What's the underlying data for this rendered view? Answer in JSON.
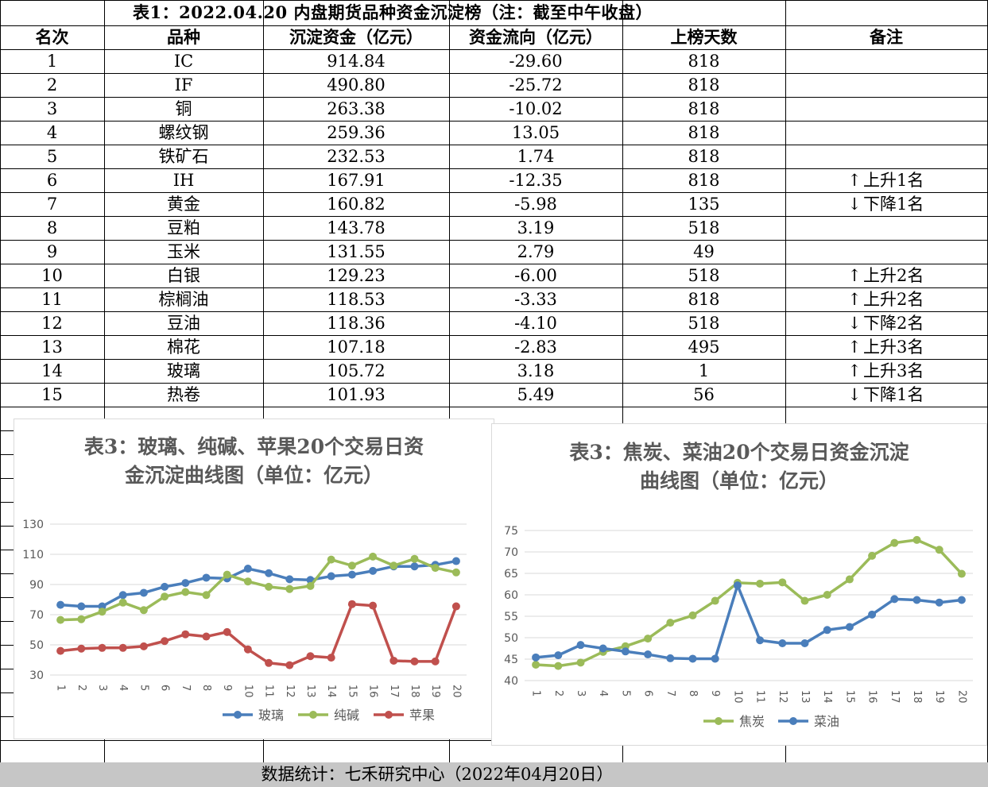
{
  "table": {
    "title": "表1：2022.04.20 内盘期货品种资金沉淀榜（注：截至中午收盘）",
    "headers": [
      "名次",
      "品种",
      "沉淀资金（亿元）",
      "资金流向（亿元）",
      "上榜天数",
      "备注"
    ],
    "rows": [
      {
        "rank": "1",
        "name": "IC",
        "fund": "914.84",
        "flow": "-29.60",
        "days": "818",
        "arrow": "",
        "note": ""
      },
      {
        "rank": "2",
        "name": "IF",
        "fund": "490.80",
        "flow": "-25.72",
        "days": "818",
        "arrow": "",
        "note": ""
      },
      {
        "rank": "3",
        "name": "铜",
        "fund": "263.38",
        "flow": "-10.02",
        "days": "818",
        "arrow": "",
        "note": ""
      },
      {
        "rank": "4",
        "name": "螺纹钢",
        "fund": "259.36",
        "flow": "13.05",
        "days": "818",
        "arrow": "",
        "note": ""
      },
      {
        "rank": "5",
        "name": "铁矿石",
        "fund": "232.53",
        "flow": "1.74",
        "days": "818",
        "arrow": "",
        "note": ""
      },
      {
        "rank": "6",
        "name": "IH",
        "fund": "167.91",
        "flow": "-12.35",
        "days": "818",
        "arrow": "↑",
        "note": "上升1名"
      },
      {
        "rank": "7",
        "name": "黄金",
        "fund": "160.82",
        "flow": "-5.98",
        "days": "135",
        "arrow": "↓",
        "note": "下降1名"
      },
      {
        "rank": "8",
        "name": "豆粕",
        "fund": "143.78",
        "flow": "3.19",
        "days": "518",
        "arrow": "",
        "note": ""
      },
      {
        "rank": "9",
        "name": "玉米",
        "fund": "131.55",
        "flow": "2.79",
        "days": "49",
        "arrow": "",
        "note": ""
      },
      {
        "rank": "10",
        "name": "白银",
        "fund": "129.23",
        "flow": "-6.00",
        "days": "518",
        "arrow": "↑",
        "note": "上升2名"
      },
      {
        "rank": "11",
        "name": "棕榈油",
        "fund": "118.53",
        "flow": "-3.33",
        "days": "818",
        "arrow": "↑",
        "note": "上升2名"
      },
      {
        "rank": "12",
        "name": "豆油",
        "fund": "118.36",
        "flow": "-4.10",
        "days": "518",
        "arrow": "↓",
        "note": "下降2名"
      },
      {
        "rank": "13",
        "name": "棉花",
        "fund": "107.18",
        "flow": "-2.83",
        "days": "495",
        "arrow": "↑",
        "note": "上升3名"
      },
      {
        "rank": "14",
        "name": "玻璃",
        "fund": "105.72",
        "flow": "3.18",
        "days": "1",
        "arrow": "↑",
        "note": "上升3名"
      },
      {
        "rank": "15",
        "name": "热卷",
        "fund": "101.93",
        "flow": "5.49",
        "days": "56",
        "arrow": "↓",
        "note": "下降1名"
      }
    ]
  },
  "footer": {
    "text": "数据统计：七禾研究中心（2022年04月20日）"
  },
  "chart_data": [
    {
      "type": "line",
      "title_line1": "表3：玻璃、纯碱、苹果20个交易日资",
      "title_line2": "金沉淀曲线图（单位：亿元）",
      "categories": [
        "1",
        "2",
        "3",
        "4",
        "5",
        "6",
        "7",
        "8",
        "9",
        "10",
        "11",
        "12",
        "13",
        "14",
        "15",
        "16",
        "17",
        "18",
        "19",
        "20"
      ],
      "ylim": [
        30,
        130
      ],
      "yticks": [
        30,
        50,
        70,
        90,
        110,
        130
      ],
      "grid": true,
      "legend": "bottom",
      "series": [
        {
          "name": "玻璃",
          "color": "#4a7ebb",
          "values": [
            76.5,
            75.5,
            75.5,
            83,
            84.5,
            88.5,
            91,
            94.5,
            94,
            100.5,
            97.5,
            93.5,
            93,
            95.5,
            96.5,
            99,
            102,
            102,
            103,
            105.5
          ]
        },
        {
          "name": "纯碱",
          "color": "#9bbb59",
          "values": [
            66.5,
            67,
            72,
            78,
            73,
            82,
            85,
            83,
            96.5,
            92,
            88.5,
            87,
            89,
            106.5,
            102.5,
            108.5,
            102.5,
            107,
            101,
            98
          ]
        },
        {
          "name": "苹果",
          "color": "#c0504d",
          "values": [
            46,
            47.5,
            48,
            48,
            49,
            52.5,
            57,
            55.5,
            58.5,
            47,
            38,
            36.5,
            42.5,
            41.5,
            77,
            76,
            39.5,
            39,
            39,
            75.5
          ]
        }
      ]
    },
    {
      "type": "line",
      "title_line1": "表3：焦炭、菜油20个交易日资金沉淀",
      "title_line2": "曲线图（单位：亿元）",
      "categories": [
        "1",
        "2",
        "3",
        "4",
        "5",
        "6",
        "7",
        "8",
        "9",
        "10",
        "11",
        "12",
        "13",
        "14",
        "15",
        "16",
        "17",
        "18",
        "19",
        "20"
      ],
      "ylim": [
        40,
        75
      ],
      "yticks": [
        40,
        45,
        50,
        55,
        60,
        65,
        70,
        75
      ],
      "grid": true,
      "legend": "bottom",
      "series": [
        {
          "name": "焦炭",
          "color": "#9bbb59",
          "values": [
            43.7,
            43.4,
            44.2,
            46.7,
            48,
            49.8,
            53.5,
            55.2,
            58.6,
            62.8,
            62.6,
            62.9,
            58.6,
            60,
            63.6,
            69.1,
            72.1,
            72.8,
            70.5,
            64.9
          ]
        },
        {
          "name": "菜油",
          "color": "#4a7ebb",
          "values": [
            45.4,
            45.9,
            48.3,
            47.5,
            46.8,
            46.1,
            45.2,
            45.1,
            45.1,
            62.2,
            49.4,
            48.7,
            48.7,
            51.8,
            52.5,
            55.4,
            59,
            58.8,
            58.2,
            58.8
          ]
        }
      ]
    }
  ]
}
